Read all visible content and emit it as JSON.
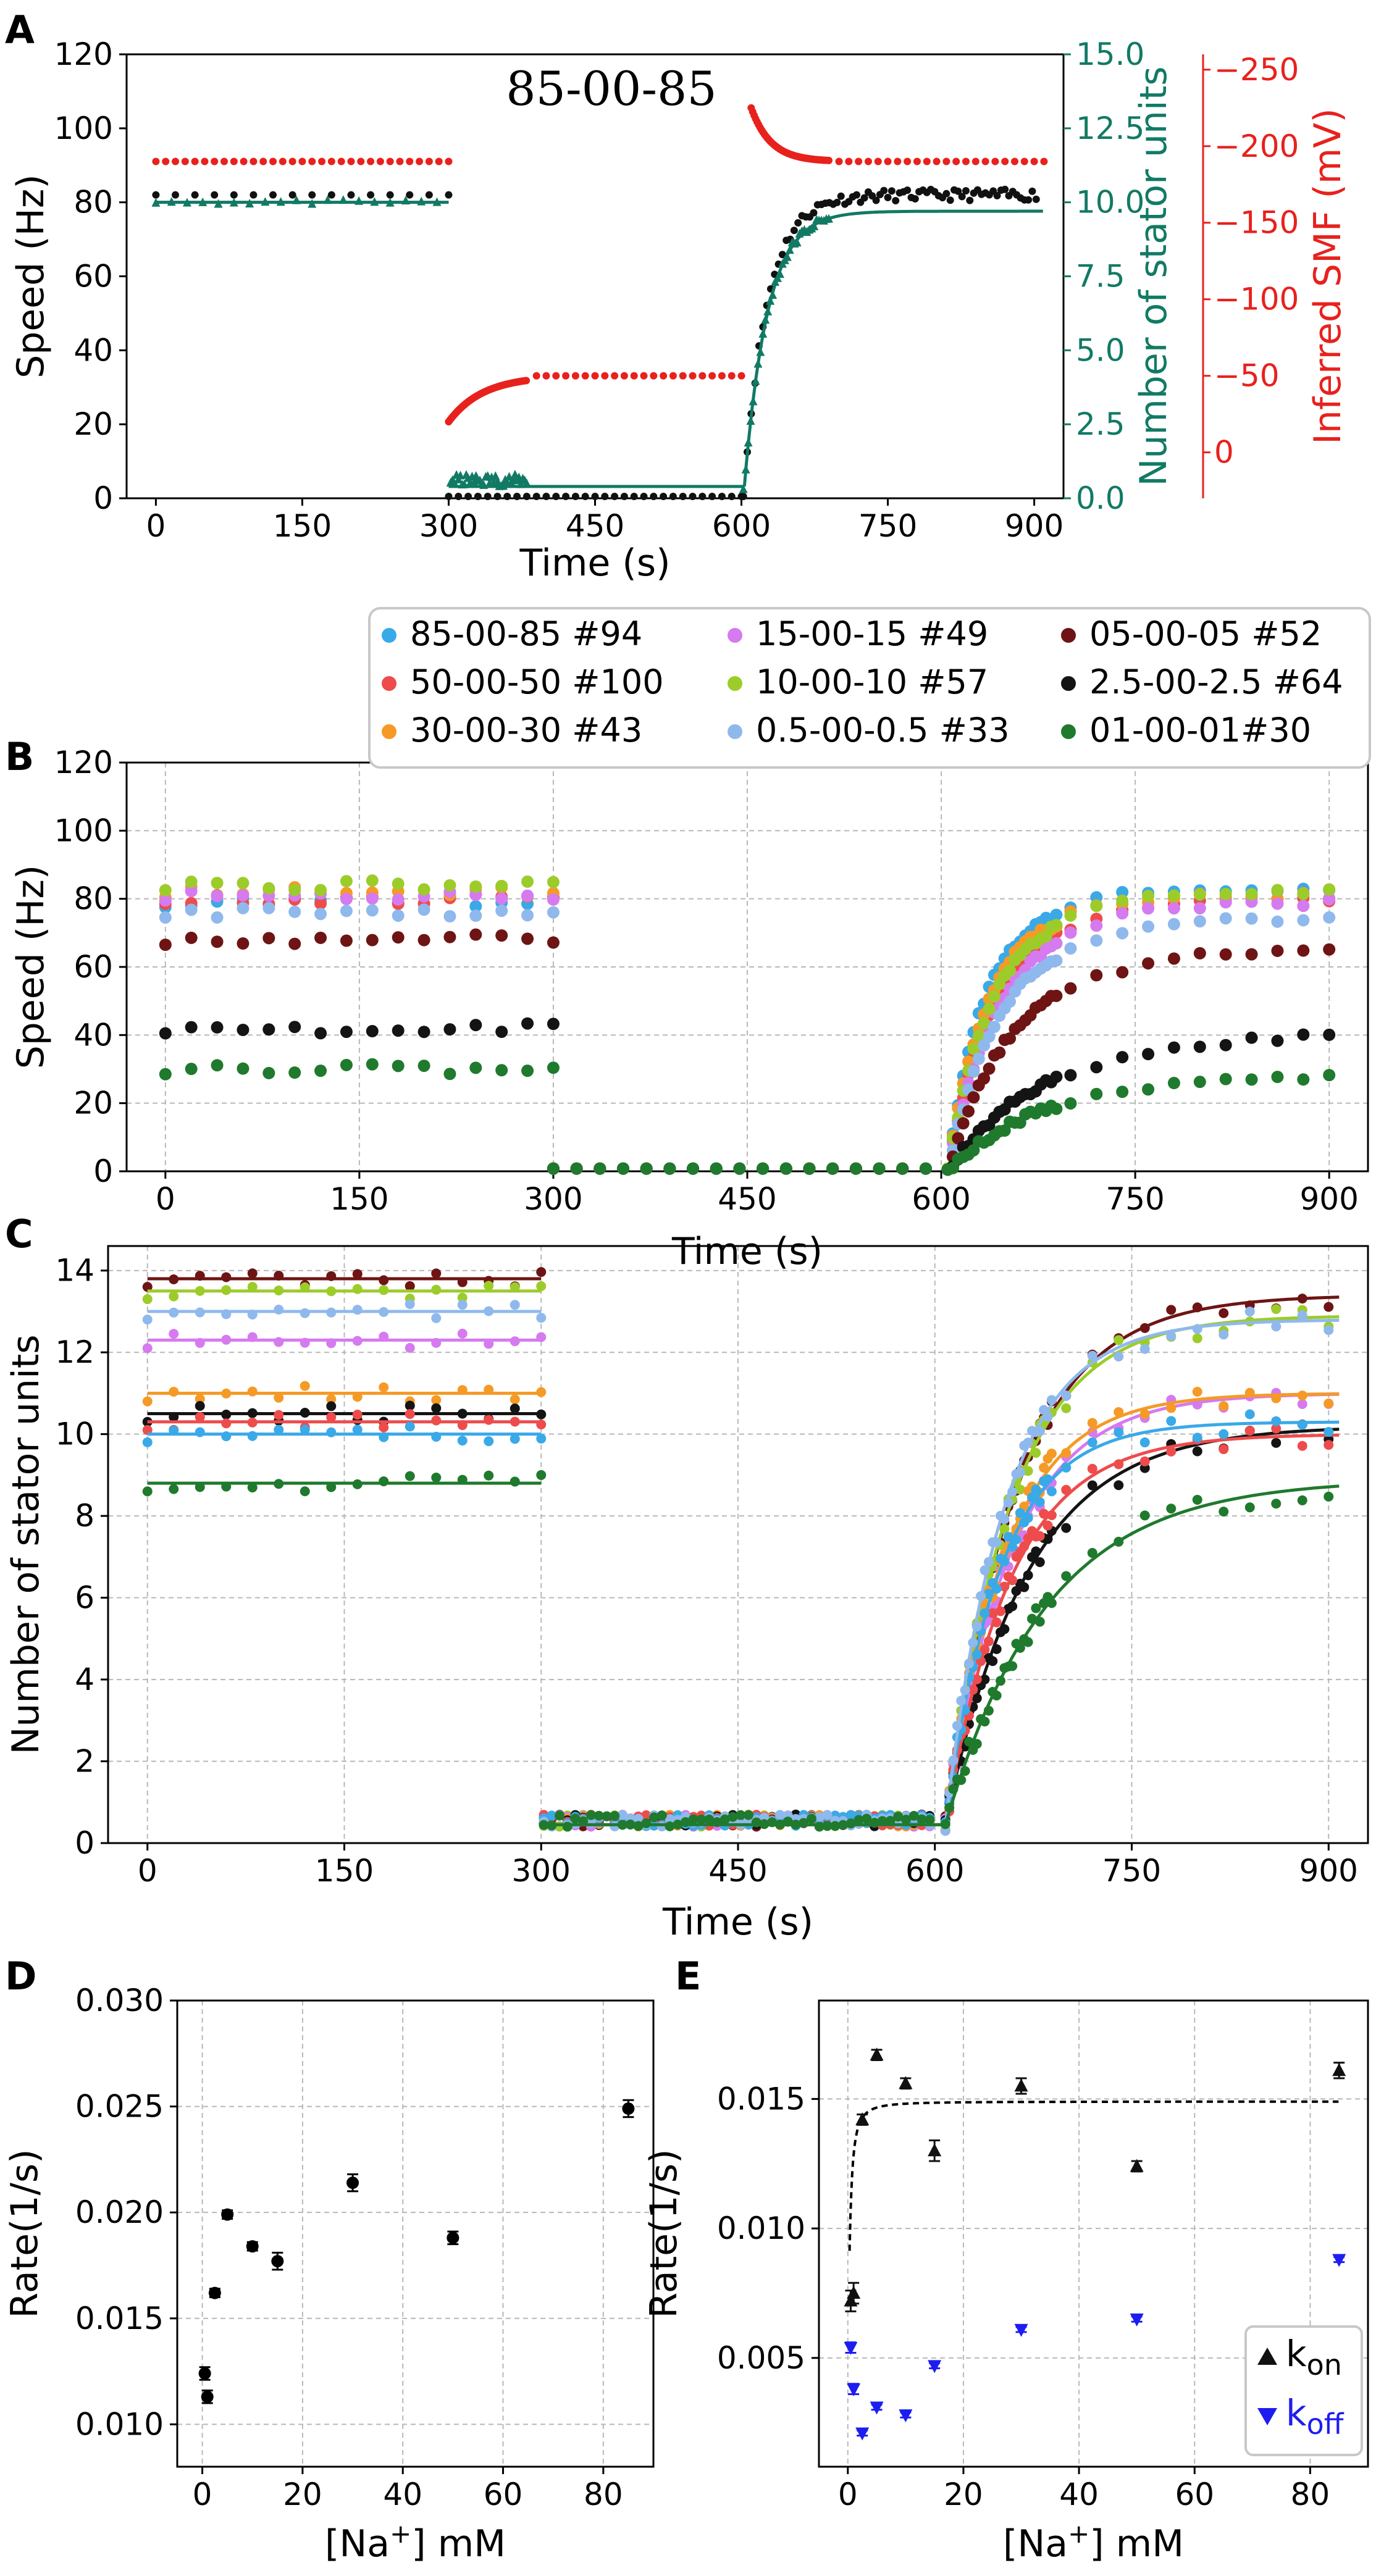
{
  "colors": {
    "teal": "#117a65",
    "red": "#e8211d",
    "black": "#111111",
    "grid": "#b8b8b8",
    "s85": "#3aa9e8",
    "s50": "#ee4c4c",
    "s30": "#f59a26",
    "s15": "#d67af0",
    "s10": "#9ccc2a",
    "s05": "#8fb9ec",
    "s5": "#6e1414",
    "s25": "#141414",
    "s01": "#1f7a2d",
    "kon": "#111111",
    "koff": "#1d1df0"
  },
  "chart_data": [
    {
      "panel": "A",
      "type": "scatter",
      "title": "85-00-85",
      "xlabel": "Time (s)",
      "ylabel": "Speed (Hz)",
      "ylabel_right1": "Number of stator units",
      "ylabel_right2": "Inferred SMF (mV)",
      "xlim": [
        -30,
        930
      ],
      "ylim": [
        0,
        120
      ],
      "y2lim": [
        0,
        15
      ],
      "y3lim": [
        30,
        -260
      ],
      "xticks": [
        "0",
        "150",
        "300",
        "450",
        "600",
        "750",
        "900"
      ],
      "yticks": [
        "0",
        "20",
        "40",
        "60",
        "80",
        "100",
        "120"
      ],
      "y2ticks": [
        "0.0",
        "2.5",
        "5.0",
        "7.5",
        "10.0",
        "12.5",
        "15.0"
      ],
      "y3ticks": [
        "0",
        "−50",
        "−100",
        "−150",
        "−200",
        "−250"
      ],
      "speed_levels": {
        "before": 82,
        "during": 0.5,
        "after_plateau": 82
      },
      "stator_levels": {
        "before": 10.0,
        "during": 0.4,
        "after_plateau": 9.7,
        "k": 0.042
      },
      "smf_levels": {
        "before": -190,
        "during": -50,
        "after": -190
      }
    },
    {
      "panel": "B",
      "type": "scatter",
      "xlabel": "Time (s)",
      "ylabel": "Speed (Hz)",
      "xlim": [
        -30,
        930
      ],
      "ylim": [
        0,
        120
      ],
      "xticks": [
        "0",
        "150",
        "300",
        "450",
        "600",
        "750",
        "900"
      ],
      "yticks": [
        "0",
        "20",
        "40",
        "60",
        "80",
        "100",
        "120"
      ],
      "legend": [
        "85-00-85 #94",
        "15-00-15 #49",
        "05-00-05 #52",
        "50-00-50 #100",
        "10-00-10 #57",
        "2.5-00-2.5 #64",
        "30-00-30 #43",
        "0.5-00-0.5 #33",
        "01-00-01#30"
      ],
      "series": [
        {
          "name": "85-00-85 #94",
          "before": 79,
          "after": 83,
          "k": 0.03
        },
        {
          "name": "50-00-50 #100",
          "before": 80,
          "after": 80,
          "k": 0.024
        },
        {
          "name": "30-00-30 #43",
          "before": 82,
          "after": 81,
          "k": 0.028
        },
        {
          "name": "15-00-15 #49",
          "before": 81,
          "after": 79,
          "k": 0.022
        },
        {
          "name": "10-00-10 #57",
          "before": 84,
          "after": 82,
          "k": 0.025
        },
        {
          "name": "0.5-00-0.5 #33",
          "before": 76,
          "after": 74,
          "k": 0.022
        },
        {
          "name": "05-00-05 #52",
          "before": 68,
          "after": 65,
          "k": 0.018
        },
        {
          "name": "2.5-00-2.5 #64",
          "before": 42,
          "after": 41,
          "k": 0.012
        },
        {
          "name": "01-00-01#30",
          "before": 30,
          "after": 29,
          "k": 0.012
        }
      ]
    },
    {
      "panel": "C",
      "type": "scatter",
      "xlabel": "Time (s)",
      "ylabel": "Number of stator units",
      "xlim": [
        -30,
        930
      ],
      "ylim": [
        0,
        14.6
      ],
      "xticks": [
        "0",
        "150",
        "300",
        "450",
        "600",
        "750",
        "900"
      ],
      "yticks": [
        "0",
        "2",
        "4",
        "6",
        "8",
        "10",
        "12",
        "14"
      ],
      "series": [
        {
          "name": "05-00-05 #52",
          "before": 13.8,
          "after": 13.4,
          "k": 0.0185
        },
        {
          "name": "10-00-10 #57",
          "before": 13.5,
          "after": 12.9,
          "k": 0.02
        },
        {
          "name": "15-00-15 #49",
          "before": 12.3,
          "after": 11.0,
          "k": 0.02
        },
        {
          "name": "30-00-30 #43",
          "before": 11.0,
          "after": 11.0,
          "k": 0.022
        },
        {
          "name": "2.5-00-2.5 #64",
          "before": 10.5,
          "after": 10.2,
          "k": 0.016
        },
        {
          "name": "50-00-50 #100",
          "before": 10.3,
          "after": 10.0,
          "k": 0.02
        },
        {
          "name": "85-00-85 #94",
          "before": 10.0,
          "after": 10.3,
          "k": 0.024
        },
        {
          "name": "0.5-00-0.5 #33",
          "before": 13.0,
          "after": 12.8,
          "k": 0.022
        },
        {
          "name": "01-00-01#30",
          "before": 8.8,
          "after": 8.9,
          "k": 0.013
        }
      ]
    },
    {
      "panel": "D",
      "type": "scatter",
      "xlabel": "[Na+] mM",
      "ylabel": "Rate(1/s)",
      "xlim": [
        -5,
        90
      ],
      "ylim": [
        0.008,
        0.03
      ],
      "xticks": [
        "0",
        "20",
        "40",
        "60",
        "80"
      ],
      "yticks": [
        "0.010",
        "0.015",
        "0.020",
        "0.025",
        "0.030"
      ],
      "points": [
        {
          "x": 0.5,
          "y": 0.0124,
          "err": 0.0003
        },
        {
          "x": 1,
          "y": 0.0113,
          "err": 0.0003
        },
        {
          "x": 2.5,
          "y": 0.0162,
          "err": 0.0002
        },
        {
          "x": 5,
          "y": 0.0199,
          "err": 0.0002
        },
        {
          "x": 10,
          "y": 0.0184,
          "err": 0.0002
        },
        {
          "x": 15,
          "y": 0.0177,
          "err": 0.0004
        },
        {
          "x": 30,
          "y": 0.0214,
          "err": 0.0004
        },
        {
          "x": 50,
          "y": 0.0188,
          "err": 0.0003
        },
        {
          "x": 85,
          "y": 0.0249,
          "err": 0.0004
        }
      ]
    },
    {
      "panel": "E",
      "type": "scatter",
      "xlabel": "[Na+] mM",
      "ylabel": "Rate(1/s)",
      "xlim": [
        -5,
        90
      ],
      "ylim": [
        0.0008,
        0.0188
      ],
      "xticks": [
        "0",
        "20",
        "40",
        "60",
        "80"
      ],
      "yticks": [
        "0.005",
        "0.010",
        "0.015"
      ],
      "legend": [
        "k_on",
        "k_off"
      ],
      "fit": {
        "vmax": 0.0149,
        "kd": 0.45,
        "nh": 1.5,
        "offset": 0.006
      },
      "kon": [
        {
          "x": 0.5,
          "y": 0.0072,
          "err": 0.0004
        },
        {
          "x": 1,
          "y": 0.0075,
          "err": 0.0004
        },
        {
          "x": 2.5,
          "y": 0.0142,
          "err": 0.0002
        },
        {
          "x": 5,
          "y": 0.0167,
          "err": 0.0002
        },
        {
          "x": 10,
          "y": 0.0156,
          "err": 0.0002
        },
        {
          "x": 15,
          "y": 0.013,
          "err": 0.0004
        },
        {
          "x": 30,
          "y": 0.0155,
          "err": 0.0003
        },
        {
          "x": 50,
          "y": 0.0124,
          "err": 0.0002
        },
        {
          "x": 85,
          "y": 0.0161,
          "err": 0.0003
        }
      ],
      "koff": [
        {
          "x": 0.5,
          "y": 0.0054,
          "err": 0.0002
        },
        {
          "x": 1,
          "y": 0.0038,
          "err": 0.0002
        },
        {
          "x": 2.5,
          "y": 0.0021,
          "err": 0.0001
        },
        {
          "x": 5,
          "y": 0.0031,
          "err": 0.0001
        },
        {
          "x": 10,
          "y": 0.0028,
          "err": 0.0001
        },
        {
          "x": 15,
          "y": 0.0047,
          "err": 0.0001
        },
        {
          "x": 30,
          "y": 0.0061,
          "err": 0.0001
        },
        {
          "x": 50,
          "y": 0.0065,
          "err": 0.0001
        },
        {
          "x": 85,
          "y": 0.0088,
          "err": 0.0001
        }
      ]
    }
  ],
  "panel_letters": [
    "A",
    "B",
    "C",
    "D",
    "E"
  ]
}
